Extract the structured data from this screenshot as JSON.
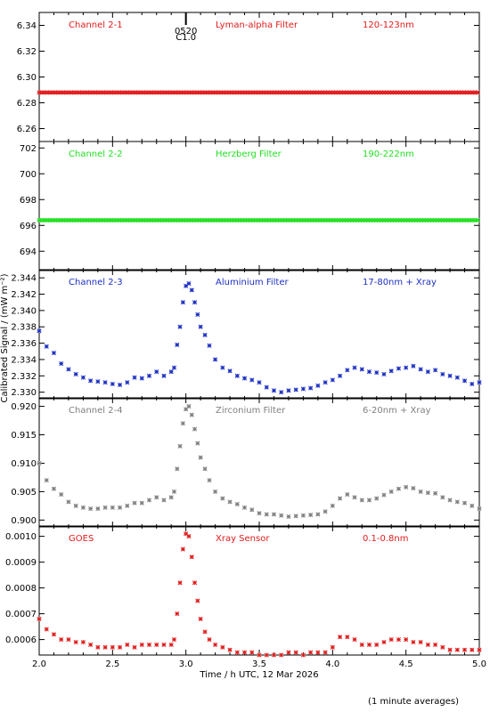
{
  "figure": {
    "xlabel": "Time / h UTC, 12 Mar 2026",
    "ylabel": "Calibrated Signal / (mW m⁻²)",
    "footnote": "(1 minute averages)",
    "marker_label": "0520 C1.0"
  },
  "chart_data": [
    {
      "type": "scatter",
      "title": "Channel 2-1",
      "center_label": "Lyman-alpha Filter",
      "right_label": "120-123nm",
      "color": "#e11b1b",
      "xlim": [
        2.0,
        5.0
      ],
      "ylim": [
        6.25,
        6.35
      ],
      "xticks": [
        2.0,
        2.5,
        3.0,
        3.5,
        4.0,
        4.5,
        5.0
      ],
      "yticks": [
        6.26,
        6.28,
        6.3,
        6.32,
        6.34
      ],
      "ytick_labels": [
        "6.26",
        "6.28",
        "6.30",
        "6.32",
        "6.34"
      ],
      "series": [
        {
          "x": [
            2.0,
            5.0
          ],
          "y": [
            6.288,
            6.288
          ],
          "style": "dense"
        }
      ]
    },
    {
      "type": "scatter",
      "title": "Channel 2-2",
      "center_label": "Herzberg Filter",
      "right_label": "190-222nm",
      "color": "#22e022",
      "xlim": [
        2.0,
        5.0
      ],
      "ylim": [
        692.5,
        702.5
      ],
      "xticks": [
        2.0,
        2.5,
        3.0,
        3.5,
        4.0,
        4.5,
        5.0
      ],
      "yticks": [
        694,
        696,
        698,
        700,
        702
      ],
      "ytick_labels": [
        "694",
        "696",
        "698",
        "700",
        "702"
      ],
      "series": [
        {
          "x": [
            2.0,
            5.0
          ],
          "y": [
            696.4,
            696.4
          ],
          "style": "dense"
        }
      ]
    },
    {
      "type": "scatter",
      "title": "Channel 2-3",
      "center_label": "Aluminium Filter",
      "right_label": "17-80nm + Xray",
      "color": "#1c2fc4",
      "xlim": [
        2.0,
        5.0
      ],
      "ylim": [
        2.3292,
        2.345
      ],
      "xticks": [
        2.0,
        2.5,
        3.0,
        3.5,
        4.0,
        4.5,
        5.0
      ],
      "yticks": [
        2.33,
        2.332,
        2.334,
        2.336,
        2.338,
        2.34,
        2.342,
        2.344
      ],
      "ytick_labels": [
        "2.330",
        "2.332",
        "2.334",
        "2.336",
        "2.338",
        "2.340",
        "2.342",
        "2.344"
      ],
      "series": [
        {
          "x": [
            2.0,
            2.05,
            2.1,
            2.15,
            2.2,
            2.25,
            2.3,
            2.35,
            2.4,
            2.45,
            2.5,
            2.55,
            2.6,
            2.65,
            2.7,
            2.75,
            2.8,
            2.85,
            2.9,
            2.92,
            2.94,
            2.96,
            2.98,
            3.0,
            3.02,
            3.04,
            3.06,
            3.08,
            3.1,
            3.13,
            3.16,
            3.2,
            3.25,
            3.3,
            3.35,
            3.4,
            3.45,
            3.5,
            3.55,
            3.6,
            3.65,
            3.7,
            3.75,
            3.8,
            3.85,
            3.9,
            3.95,
            4.0,
            4.05,
            4.1,
            4.15,
            4.2,
            4.25,
            4.3,
            4.35,
            4.4,
            4.45,
            4.5,
            4.55,
            4.6,
            4.65,
            4.7,
            4.75,
            4.8,
            4.85,
            4.9,
            4.95,
            5.0
          ],
          "y": [
            2.3375,
            2.3356,
            2.3348,
            2.3335,
            2.3328,
            2.3322,
            2.3318,
            2.3314,
            2.3313,
            2.3312,
            2.331,
            2.3309,
            2.3312,
            2.3318,
            2.3317,
            2.332,
            2.3325,
            2.332,
            2.3325,
            2.333,
            2.3358,
            2.338,
            2.341,
            2.343,
            2.3433,
            2.3425,
            2.341,
            2.3395,
            2.338,
            2.337,
            2.3357,
            2.334,
            2.333,
            2.3326,
            2.332,
            2.3317,
            2.3315,
            2.3312,
            2.3306,
            2.3302,
            2.33,
            2.3302,
            2.3303,
            2.3304,
            2.3305,
            2.3308,
            2.3312,
            2.3315,
            2.332,
            2.3327,
            2.333,
            2.3328,
            2.3325,
            2.3324,
            2.3322,
            2.3326,
            2.3329,
            2.333,
            2.3332,
            2.3328,
            2.3325,
            2.3327,
            2.3322,
            2.332,
            2.3318,
            2.3314,
            2.331,
            2.3312
          ]
        }
      ]
    },
    {
      "type": "scatter",
      "title": "Channel 2-4",
      "center_label": "Zirconium Filter",
      "right_label": "6-20nm + Xray",
      "color": "#808080",
      "xlim": [
        2.0,
        5.0
      ],
      "ylim": [
        0.8988,
        0.9215
      ],
      "xticks": [
        2.0,
        2.5,
        3.0,
        3.5,
        4.0,
        4.5,
        5.0
      ],
      "yticks": [
        0.9,
        0.905,
        0.91,
        0.915,
        0.92
      ],
      "ytick_labels": [
        "0.900",
        "0.905",
        "0.910",
        "0.915",
        "0.920"
      ],
      "series": [
        {
          "x": [
            2.0,
            2.05,
            2.1,
            2.15,
            2.2,
            2.25,
            2.3,
            2.35,
            2.4,
            2.45,
            2.5,
            2.55,
            2.6,
            2.65,
            2.7,
            2.75,
            2.8,
            2.85,
            2.9,
            2.92,
            2.94,
            2.96,
            2.98,
            3.0,
            3.02,
            3.04,
            3.06,
            3.08,
            3.1,
            3.13,
            3.16,
            3.2,
            3.25,
            3.3,
            3.35,
            3.4,
            3.45,
            3.5,
            3.55,
            3.6,
            3.65,
            3.7,
            3.75,
            3.8,
            3.85,
            3.9,
            3.95,
            4.0,
            4.05,
            4.1,
            4.15,
            4.2,
            4.25,
            4.3,
            4.35,
            4.4,
            4.45,
            4.5,
            4.55,
            4.6,
            4.65,
            4.7,
            4.75,
            4.8,
            4.85,
            4.9,
            4.95,
            5.0
          ],
          "y": [
            0.91,
            0.907,
            0.9055,
            0.9045,
            0.9032,
            0.9025,
            0.9022,
            0.902,
            0.902,
            0.9022,
            0.9022,
            0.9022,
            0.9025,
            0.903,
            0.903,
            0.9035,
            0.904,
            0.9035,
            0.904,
            0.905,
            0.909,
            0.913,
            0.917,
            0.9195,
            0.92,
            0.9185,
            0.916,
            0.9135,
            0.911,
            0.909,
            0.907,
            0.905,
            0.9038,
            0.9032,
            0.9028,
            0.9022,
            0.9018,
            0.9012,
            0.901,
            0.901,
            0.9008,
            0.9006,
            0.9007,
            0.9008,
            0.9009,
            0.901,
            0.9015,
            0.9025,
            0.9038,
            0.9045,
            0.904,
            0.9035,
            0.9035,
            0.9038,
            0.9044,
            0.905,
            0.9055,
            0.9058,
            0.9056,
            0.905,
            0.9048,
            0.9047,
            0.904,
            0.9035,
            0.9032,
            0.903,
            0.9025,
            0.902
          ]
        }
      ]
    },
    {
      "type": "scatter",
      "title": "GOES",
      "center_label": "Xray Sensor",
      "right_label": "0.1-0.8nm",
      "color": "#e11b1b",
      "xlim": [
        2.0,
        5.0
      ],
      "ylim": [
        0.00054,
        0.00104
      ],
      "xticks": [
        2.0,
        2.5,
        3.0,
        3.5,
        4.0,
        4.5,
        5.0
      ],
      "xtick_labels": [
        "2.0",
        "2.5",
        "3.0",
        "3.5",
        "4.0",
        "4.5",
        "5.0"
      ],
      "yticks": [
        0.0006,
        0.0007,
        0.0008,
        0.0009,
        0.001
      ],
      "ytick_labels": [
        "0.0006",
        "0.0007",
        "0.0008",
        "0.0009",
        "0.0010"
      ],
      "series": [
        {
          "x": [
            2.0,
            2.05,
            2.1,
            2.15,
            2.2,
            2.25,
            2.3,
            2.35,
            2.4,
            2.45,
            2.5,
            2.55,
            2.6,
            2.65,
            2.7,
            2.75,
            2.8,
            2.85,
            2.9,
            2.92,
            2.94,
            2.96,
            2.98,
            3.0,
            3.02,
            3.04,
            3.06,
            3.08,
            3.1,
            3.13,
            3.16,
            3.2,
            3.25,
            3.3,
            3.35,
            3.4,
            3.45,
            3.5,
            3.55,
            3.6,
            3.65,
            3.7,
            3.75,
            3.8,
            3.85,
            3.9,
            3.95,
            4.0,
            4.05,
            4.1,
            4.15,
            4.2,
            4.25,
            4.3,
            4.35,
            4.4,
            4.45,
            4.5,
            4.55,
            4.6,
            4.65,
            4.7,
            4.75,
            4.8,
            4.85,
            4.9,
            4.95,
            5.0
          ],
          "y": [
            0.00068,
            0.00064,
            0.00062,
            0.0006,
            0.0006,
            0.00059,
            0.00059,
            0.00058,
            0.00057,
            0.00057,
            0.00057,
            0.00057,
            0.00058,
            0.00057,
            0.00058,
            0.00058,
            0.00058,
            0.00058,
            0.00058,
            0.0006,
            0.0007,
            0.00082,
            0.00095,
            0.00101,
            0.001,
            0.00092,
            0.00082,
            0.00075,
            0.00068,
            0.00063,
            0.0006,
            0.00058,
            0.00057,
            0.00056,
            0.00055,
            0.00055,
            0.00055,
            0.00054,
            0.00054,
            0.00054,
            0.00054,
            0.00055,
            0.00055,
            0.00054,
            0.00055,
            0.00055,
            0.00055,
            0.00057,
            0.00061,
            0.00061,
            0.0006,
            0.00058,
            0.00058,
            0.00058,
            0.00059,
            0.0006,
            0.0006,
            0.0006,
            0.00059,
            0.00059,
            0.00058,
            0.00058,
            0.00057,
            0.00056,
            0.00056,
            0.00056,
            0.00056,
            0.00056
          ]
        }
      ]
    }
  ]
}
